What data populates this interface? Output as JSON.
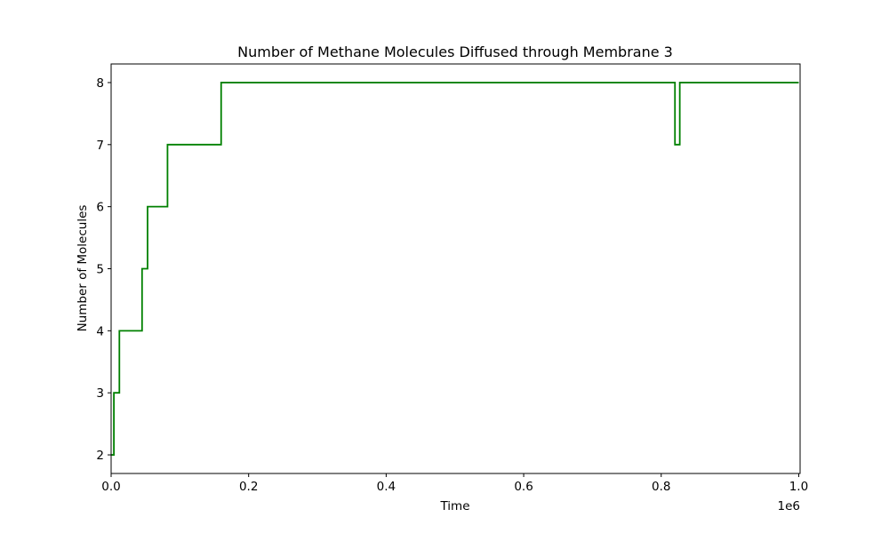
{
  "chart_data": {
    "type": "line",
    "title": "Number of Methane Molecules Diffused through Membrane 3",
    "xlabel": "Time",
    "ylabel": "Number of Molecules",
    "x_offset_label": "1e6",
    "xlim": [
      0,
      1002000
    ],
    "ylim": [
      1.7,
      8.3
    ],
    "x_ticks": [
      0,
      200000,
      400000,
      600000,
      800000,
      1000000
    ],
    "x_tick_labels": [
      "0.0",
      "0.2",
      "0.4",
      "0.6",
      "0.8",
      "1.0"
    ],
    "y_ticks": [
      2,
      3,
      4,
      5,
      6,
      7,
      8
    ],
    "y_tick_labels": [
      "2",
      "3",
      "4",
      "5",
      "6",
      "7",
      "8"
    ],
    "grid": false,
    "series": [
      {
        "color": "#008000",
        "step": true,
        "x": [
          0,
          4000,
          12000,
          45000,
          53000,
          82000,
          160000,
          820000,
          827000,
          1000000
        ],
        "y": [
          2,
          3,
          4,
          5,
          6,
          7,
          8,
          7,
          8,
          8
        ]
      }
    ]
  }
}
